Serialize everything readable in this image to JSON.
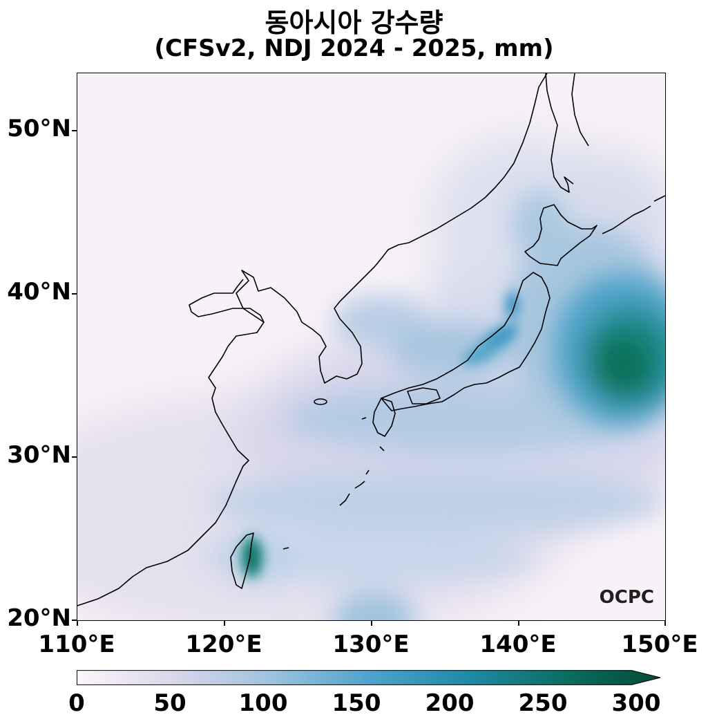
{
  "title": {
    "line1": "동아시아 강수량",
    "line2": "(CFSv2, NDJ 2024 - 2025, mm)"
  },
  "axes": {
    "y_ticks": [
      "50°N",
      "40°N",
      "30°N",
      "20°N"
    ],
    "x_ticks": [
      "110°E",
      "120°E",
      "130°E",
      "140°E",
      "150°E"
    ],
    "lon_range": [
      110,
      150
    ],
    "lat_range": [
      20,
      53.5
    ]
  },
  "colorbar": {
    "ticks": [
      "0",
      "50",
      "100",
      "150",
      "200",
      "250",
      "300"
    ],
    "colors": [
      "#fdf5fb",
      "#d9d6ea",
      "#9fc3de",
      "#4fa3cc",
      "#1f8aa6",
      "#0b6f63",
      "#034a35"
    ]
  },
  "logo": "OCPC"
}
